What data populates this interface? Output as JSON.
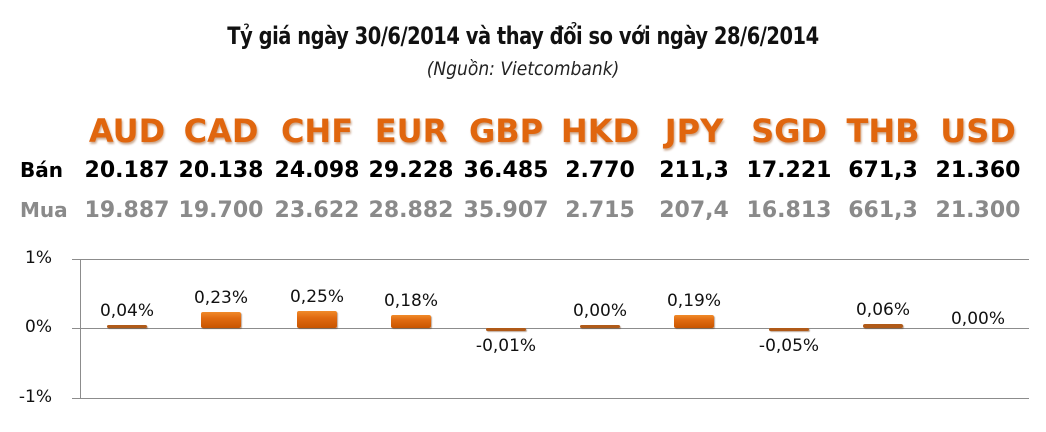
{
  "header": {
    "title": "Tỷ giá ngày 30/6/2014 và thay đổi so với ngày 28/6/2014",
    "subtitle": "(Nguồn: Vietcombank)"
  },
  "table": {
    "row_labels": {
      "sell": "Bán",
      "buy": "Mua"
    },
    "currencies": [
      "AUD",
      "CAD",
      "CHF",
      "EUR",
      "GBP",
      "HKD",
      "JPY",
      "SGD",
      "THB",
      "USD"
    ],
    "sell": [
      "20.187",
      "20.138",
      "24.098",
      "29.228",
      "36.485",
      "2.770",
      "211,3",
      "17.221",
      "671,3",
      "21.360"
    ],
    "buy": [
      "19.887",
      "19.700",
      "23.622",
      "28.882",
      "35.907",
      "2.715",
      "207,4",
      "16.813",
      "661,3",
      "21.300"
    ]
  },
  "colors": {
    "currency_text": "#e0660e",
    "sell_text": "#000000",
    "buy_text": "#8a8a8a",
    "bar": "#e06a10"
  },
  "chart_data": {
    "type": "bar",
    "title": "Tỷ giá ngày 30/6/2014 và thay đổi so với ngày 28/6/2014",
    "subtitle": "(Nguồn: Vietcombank)",
    "categories": [
      "AUD",
      "CAD",
      "CHF",
      "EUR",
      "GBP",
      "HKD",
      "JPY",
      "SGD",
      "THB",
      "USD"
    ],
    "values": [
      0.04,
      0.23,
      0.25,
      0.18,
      -0.01,
      0.0,
      0.19,
      -0.05,
      0.06,
      0.0
    ],
    "value_labels": [
      "0,04%",
      "0,23%",
      "0,25%",
      "0,18%",
      "-0,01%",
      "0,00%",
      "0,19%",
      "-0,05%",
      "0,06%",
      "0,00%"
    ],
    "xlabel": "",
    "ylabel": "",
    "ylim": [
      -1,
      1
    ],
    "yticks": [
      "1%",
      "0%",
      "-1%"
    ],
    "grid": true,
    "legend": "none"
  },
  "axis": {
    "ticks": [
      "1%",
      "0%",
      "-1%"
    ]
  }
}
